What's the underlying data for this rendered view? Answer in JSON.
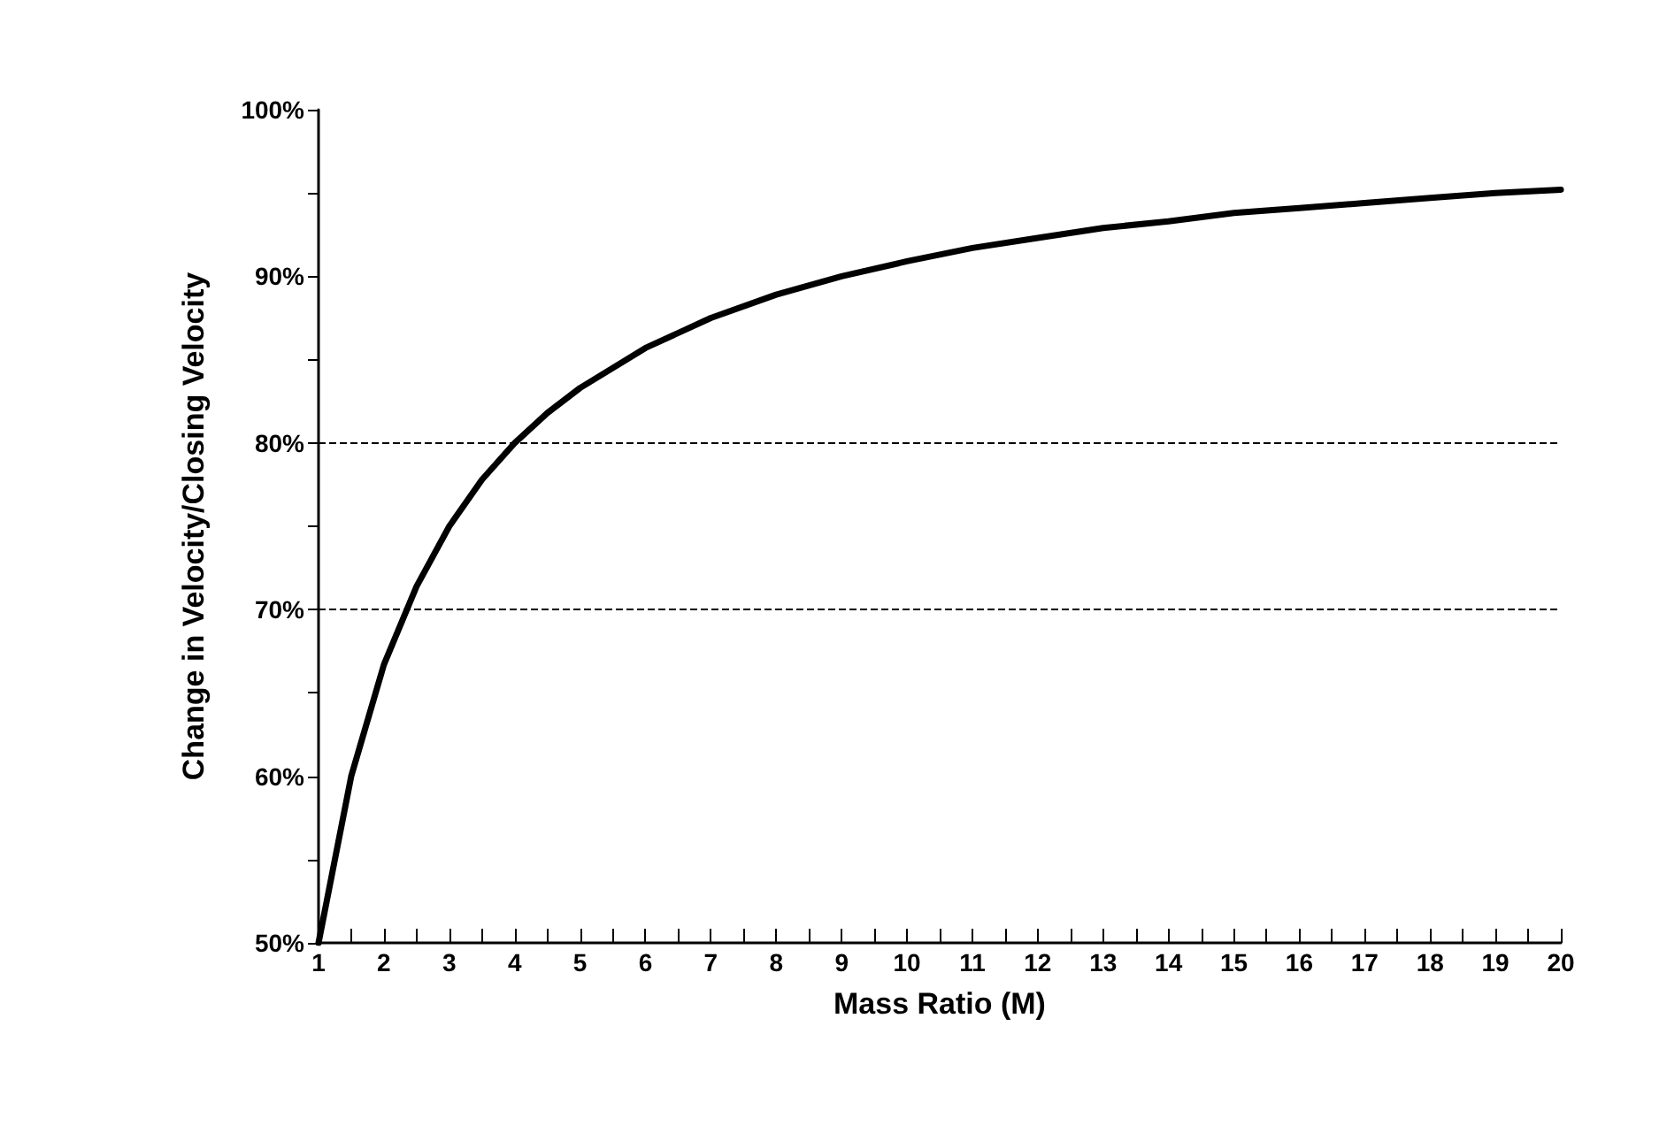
{
  "chart_data": {
    "type": "line",
    "xlabel": "Mass Ratio (M)",
    "ylabel": "Change in Velocity/Closing Velocity",
    "x": [
      1,
      1.5,
      2,
      2.5,
      3,
      3.5,
      4,
      4.5,
      5,
      6,
      7,
      8,
      9,
      10,
      11,
      12,
      13,
      14,
      15,
      16,
      17,
      18,
      19,
      20
    ],
    "series": [
      {
        "color": "#000000",
        "values": [
          50,
          60,
          66.7,
          71.4,
          75,
          77.8,
          80,
          81.8,
          83.3,
          85.7,
          87.5,
          88.9,
          90,
          90.9,
          91.7,
          92.3,
          92.9,
          93.3,
          93.8,
          94.1,
          94.4,
          94.7,
          95,
          95.2
        ]
      }
    ],
    "xlim": [
      1,
      20
    ],
    "xticks": [
      1,
      {
        "value": 1.5,
        "label": null
      },
      2,
      {
        "value": 2.5,
        "label": null
      },
      3,
      {
        "value": 3.5,
        "label": null
      },
      4,
      {
        "value": 4.5,
        "label": null
      },
      5,
      {
        "value": 5.5,
        "label": null
      },
      6,
      {
        "value": 6.5,
        "label": null
      },
      7,
      {
        "value": 7.5,
        "label": null
      },
      8,
      {
        "value": 8.5,
        "label": null
      },
      9,
      {
        "value": 9.5,
        "label": null
      },
      10,
      {
        "value": 10.5,
        "label": null
      },
      11,
      {
        "value": 11.5,
        "label": null
      },
      12,
      {
        "value": 12.5,
        "label": null
      },
      13,
      {
        "value": 13.5,
        "label": null
      },
      14,
      {
        "value": 14.5,
        "label": null
      },
      15,
      {
        "value": 15.5,
        "label": null
      },
      16,
      {
        "value": 16.5,
        "label": null
      },
      17,
      {
        "value": 17.5,
        "label": null
      },
      18,
      {
        "value": 18.5,
        "label": null
      },
      19,
      {
        "value": 19.5,
        "label": null
      },
      20
    ],
    "ylim": [
      50,
      100
    ],
    "yticks": [
      {
        "value": 50,
        "label": "50%"
      },
      {
        "value": 55,
        "label": null
      },
      {
        "value": 60,
        "label": "60%"
      },
      {
        "value": 65,
        "label": null
      },
      {
        "value": 70,
        "label": "70%"
      },
      {
        "value": 75,
        "label": null
      },
      {
        "value": 80,
        "label": "80%"
      },
      {
        "value": 85,
        "label": null
      },
      {
        "value": 90,
        "label": "90%"
      },
      {
        "value": 95,
        "label": null
      },
      {
        "value": 100,
        "label": "100%"
      }
    ],
    "ref_lines": [
      {
        "axis": "y",
        "value": 70,
        "line_style": "dashed",
        "color": "#000000"
      },
      {
        "axis": "y",
        "value": 80,
        "line_style": "dashed",
        "color": "#000000"
      }
    ],
    "grid": false,
    "marker": "none",
    "line_style": "solid"
  }
}
